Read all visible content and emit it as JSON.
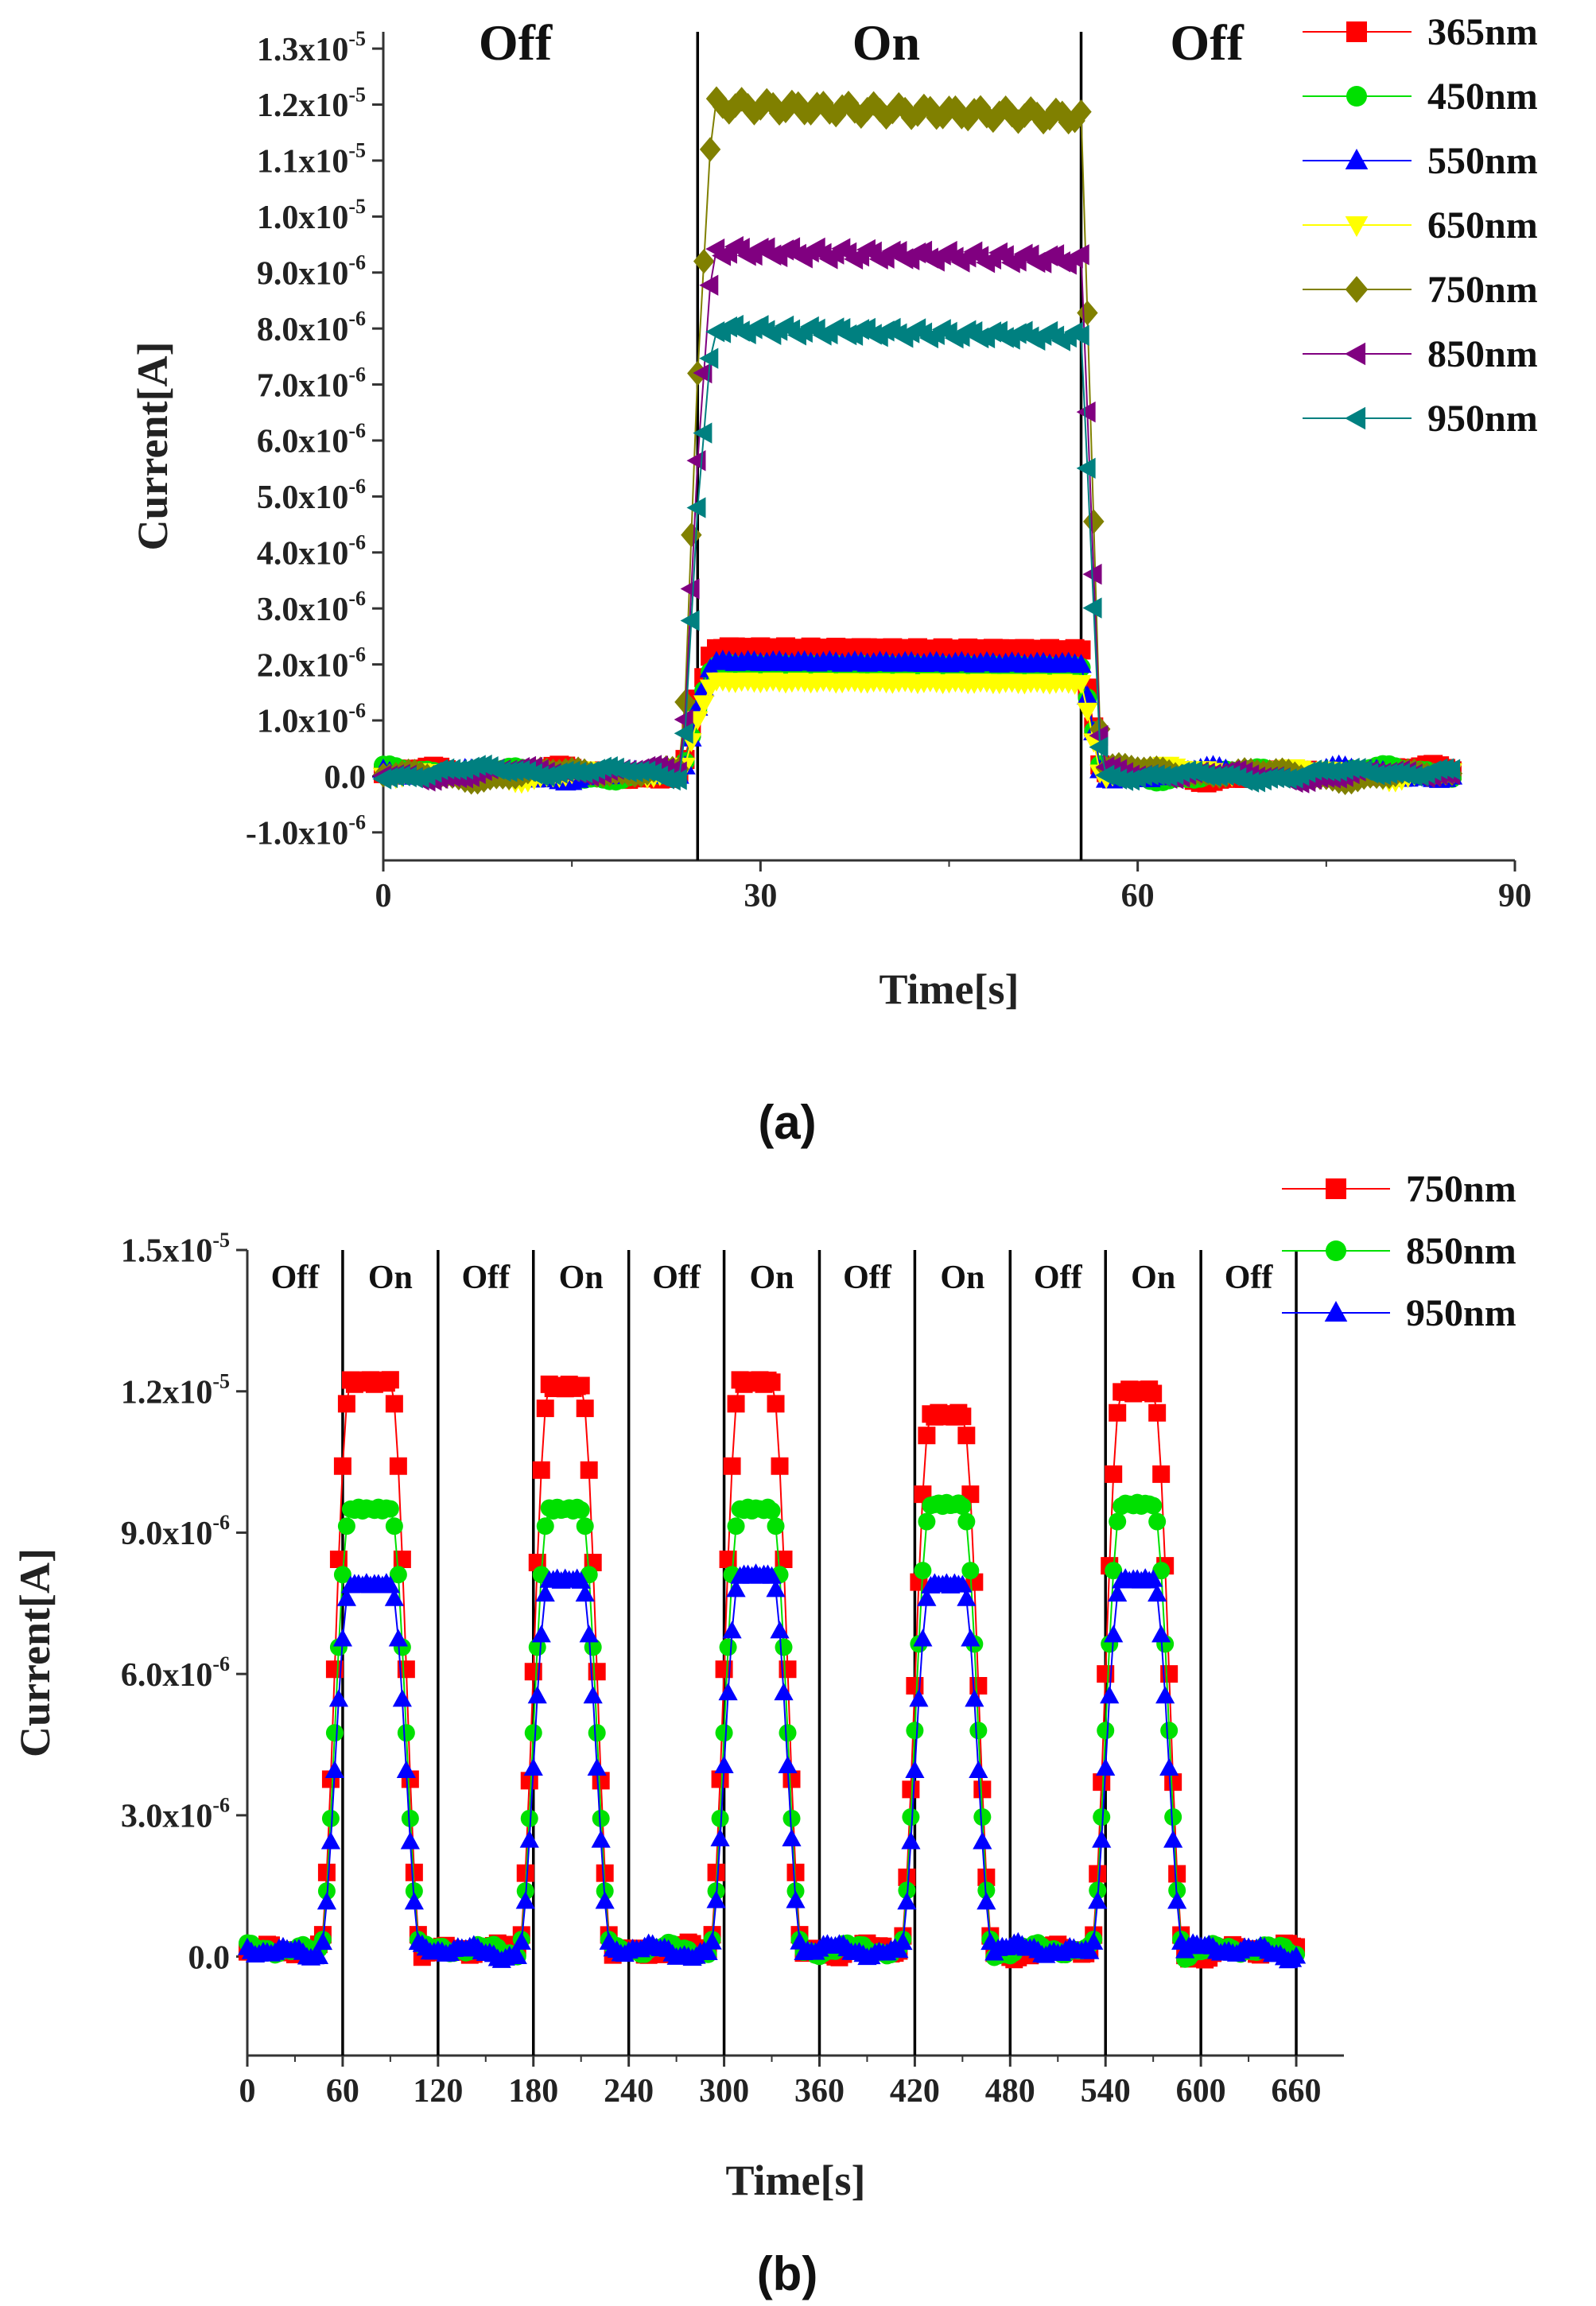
{
  "chart_data": [
    {
      "panel": "a",
      "type": "line",
      "caption": "(a)",
      "xlabel": "Time[s]",
      "ylabel": "Current[A]",
      "xlim": [
        0,
        90
      ],
      "ylim": [
        -1.5e-06,
        1.33e-05
      ],
      "xticks": [
        0,
        30,
        60,
        90
      ],
      "yticks": [
        {
          "value": 1.3e-05,
          "mant": "1.3x10",
          "exp": "-5"
        },
        {
          "value": 1.2e-05,
          "mant": "1.2x10",
          "exp": "-5"
        },
        {
          "value": 1.1e-05,
          "mant": "1.1x10",
          "exp": "-5"
        },
        {
          "value": 1e-05,
          "mant": "1.0x10",
          "exp": "-5"
        },
        {
          "value": 9e-06,
          "mant": "9.0x10",
          "exp": "-6"
        },
        {
          "value": 8e-06,
          "mant": "8.0x10",
          "exp": "-6"
        },
        {
          "value": 7e-06,
          "mant": "7.0x10",
          "exp": "-6"
        },
        {
          "value": 6e-06,
          "mant": "6.0x10",
          "exp": "-6"
        },
        {
          "value": 5e-06,
          "mant": "5.0x10",
          "exp": "-6"
        },
        {
          "value": 4e-06,
          "mant": "4.0x10",
          "exp": "-6"
        },
        {
          "value": 3e-06,
          "mant": "3.0x10",
          "exp": "-6"
        },
        {
          "value": 2e-06,
          "mant": "2.0x10",
          "exp": "-6"
        },
        {
          "value": 1e-06,
          "mant": "1.0x10",
          "exp": "-6"
        },
        {
          "value": 0,
          "mant": "0.0",
          "exp": ""
        },
        {
          "value": -1e-06,
          "mant": "-1.0x10",
          "exp": "-6"
        }
      ],
      "switch_times": [
        25,
        55.5
      ],
      "regions": [
        {
          "label": "Off",
          "x": 10.5
        },
        {
          "label": "On",
          "x": 40
        },
        {
          "label": "Off",
          "x": 65.5
        }
      ],
      "on_interval": [
        25,
        55.5
      ],
      "t_end": 85,
      "legend_position": "top-right",
      "series": [
        {
          "name": "365nm",
          "color": "#ff0000",
          "marker": "square",
          "on_level": 2.3e-06
        },
        {
          "name": "450nm",
          "color": "#00e000",
          "marker": "circle",
          "on_level": 2e-06
        },
        {
          "name": "550nm",
          "color": "#0000ff",
          "marker": "triangle-up",
          "on_level": 2.05e-06
        },
        {
          "name": "650nm",
          "color": "#ffff00",
          "marker": "triangle-down",
          "on_level": 1.7e-06
        },
        {
          "name": "750nm",
          "color": "#808000",
          "marker": "diamond",
          "on_level": 1.2e-05
        },
        {
          "name": "850nm",
          "color": "#800080",
          "marker": "triangle-left",
          "on_level": 9.4e-06
        },
        {
          "name": "950nm",
          "color": "#008080",
          "marker": "triangle-left",
          "on_level": 8e-06
        }
      ]
    },
    {
      "panel": "b",
      "type": "line",
      "caption": "(b)",
      "xlabel": "Time[s]",
      "ylabel": "Current[A]",
      "xlim": [
        0,
        690
      ],
      "ylim": [
        -2.1e-06,
        1.5e-05
      ],
      "xticks": [
        0,
        60,
        120,
        180,
        240,
        300,
        360,
        420,
        480,
        540,
        600,
        660
      ],
      "yticks": [
        {
          "value": 1.5e-05,
          "mant": "1.5x10",
          "exp": "-5"
        },
        {
          "value": 1.2e-05,
          "mant": "1.2x10",
          "exp": "-5"
        },
        {
          "value": 9e-06,
          "mant": "9.0x10",
          "exp": "-6"
        },
        {
          "value": 6e-06,
          "mant": "6.0x10",
          "exp": "-6"
        },
        {
          "value": 3e-06,
          "mant": "3.0x10",
          "exp": "-6"
        },
        {
          "value": 0,
          "mant": "0.0",
          "exp": ""
        }
      ],
      "switch_times": [
        60,
        120,
        180,
        240,
        300,
        360,
        420,
        480,
        540,
        600,
        660
      ],
      "regions": [
        {
          "label": "Off",
          "x": 30
        },
        {
          "label": "On",
          "x": 90
        },
        {
          "label": "Off",
          "x": 150
        },
        {
          "label": "On",
          "x": 210
        },
        {
          "label": "Off",
          "x": 270
        },
        {
          "label": "On",
          "x": 330
        },
        {
          "label": "Off",
          "x": 390
        },
        {
          "label": "On",
          "x": 450
        },
        {
          "label": "Off",
          "x": 510
        },
        {
          "label": "On",
          "x": 570
        },
        {
          "label": "Off",
          "x": 630
        }
      ],
      "on_intervals": [
        [
          45,
          110
        ],
        [
          170,
          230
        ],
        [
          290,
          350
        ],
        [
          410,
          470
        ],
        [
          530,
          590
        ]
      ],
      "t_end": 660,
      "legend_position": "top-right",
      "series": [
        {
          "name": "750nm",
          "color": "#ff0000",
          "marker": "square",
          "on_levels": [
            1.22e-05,
            1.21e-05,
            1.22e-05,
            1.15e-05,
            1.2e-05
          ]
        },
        {
          "name": "850nm",
          "color": "#00e000",
          "marker": "circle",
          "on_levels": [
            9.5e-06,
            9.5e-06,
            9.5e-06,
            9.6e-06,
            9.6e-06
          ]
        },
        {
          "name": "950nm",
          "color": "#0000ff",
          "marker": "triangle-up",
          "on_levels": [
            7.9e-06,
            8e-06,
            8.1e-06,
            7.9e-06,
            8e-06
          ]
        }
      ]
    }
  ]
}
